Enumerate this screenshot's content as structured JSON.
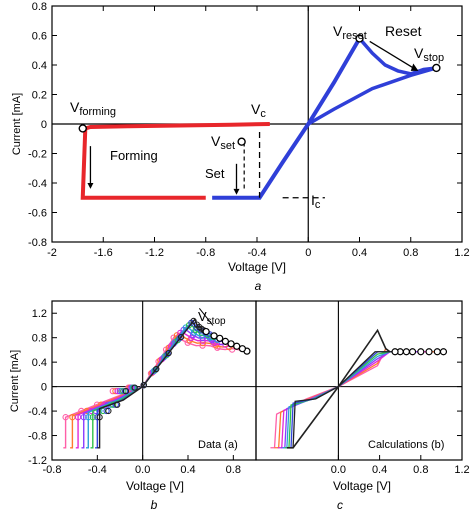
{
  "panels": {
    "a": {
      "caption": "a",
      "ylabel": "Current [mA]",
      "xlabel": "Voltage [V]",
      "xticks": [
        "-2",
        "-1.6",
        "-1.2",
        "-0.8",
        "-0.4",
        "0",
        "0.4",
        "0.8",
        "1.2"
      ],
      "yticks": [
        "0.8",
        "0.6",
        "0.4",
        "0.2",
        "0",
        "-0.2",
        "-0.4",
        "-0.6",
        "-0.8"
      ],
      "annotations": {
        "v_forming_main": "V",
        "v_forming_sub": "forming",
        "forming": "Forming",
        "v_c_main": "V",
        "v_c_sub": "c",
        "v_set_main": "V",
        "v_set_sub": "set",
        "set": "Set",
        "i_c_main": "I",
        "i_c_sub": "c",
        "v_reset_main": "V",
        "v_reset_sub": "reset",
        "reset": "Reset",
        "v_stop_main": "V",
        "v_stop_sub": "stop"
      }
    },
    "b": {
      "caption": "b",
      "ylabel": "Current [mA]",
      "xlabel": "Voltage [V]",
      "xticks": [
        "-0.8",
        "-0.4",
        "0.0",
        "0.4",
        "0.8"
      ],
      "yticks": [
        "1.2",
        "0.8",
        "0.4",
        "0",
        "-0.4",
        "-0.8",
        "-1.2"
      ],
      "legend": "Data (a)",
      "v_stop_main": "V",
      "v_stop_sub": "stop"
    },
    "c": {
      "caption": "c",
      "xlabel": "Voltage [V]",
      "xticks": [
        "0.0",
        "0.4",
        "0.8",
        "1.2"
      ],
      "legend": "Calculations (b)"
    }
  },
  "colors": {
    "forming": "#e8262b",
    "set_reset": "#2f3fd8",
    "family": [
      "#ff5fa8",
      "#ff7a2e",
      "#e02ad6",
      "#8a3cff",
      "#2aa0d8",
      "#31c24a",
      "#3344dd",
      "#222222"
    ]
  },
  "chart_data": [
    {
      "type": "line",
      "panel": "a",
      "xlim": [
        -2,
        1.2
      ],
      "ylim": [
        -0.8,
        0.8
      ],
      "series": [
        {
          "role": "forming",
          "x": [
            -0.3,
            -0.6,
            -1.0,
            -1.4,
            -1.7,
            -1.74,
            -1.76,
            -1.76,
            -1.2,
            -0.8
          ],
          "y": [
            0,
            -0.005,
            -0.01,
            -0.015,
            -0.02,
            -0.03,
            -0.5,
            -0.5,
            -0.5,
            -0.5
          ]
        },
        {
          "role": "set",
          "x": [
            -0.75,
            -0.5,
            -0.38,
            -0.2,
            0,
            0.2,
            0.4
          ],
          "y": [
            -0.5,
            -0.5,
            -0.5,
            -0.26,
            0,
            0.28,
            0.58
          ]
        },
        {
          "role": "reset",
          "x": [
            0.4,
            0.5,
            0.6,
            0.7,
            0.8,
            0.9,
            1.0,
            0.8,
            0.5,
            0.2,
            0
          ],
          "y": [
            0.58,
            0.48,
            0.4,
            0.36,
            0.34,
            0.37,
            0.38,
            0.33,
            0.24,
            0.1,
            0
          ]
        }
      ],
      "markers": {
        "v_forming": [
          -1.76,
          -0.03
        ],
        "v_set": [
          -0.52,
          -0.12
        ],
        "v_reset": [
          0.4,
          0.58
        ],
        "v_stop": [
          1.0,
          0.38
        ],
        "v_c": -0.38,
        "i_c": -0.5
      }
    },
    {
      "type": "line",
      "panel": "b",
      "xlim": [
        -0.8,
        1.0
      ],
      "ylim": [
        -1.2,
        1.4
      ],
      "series": [
        {
          "vset": -0.68,
          "vreset": 0.28,
          "ireset": 0.82,
          "vstop": 0.92,
          "istop": 0.58
        },
        {
          "vset": -0.62,
          "vreset": 0.31,
          "ireset": 0.86,
          "vstop": 0.88,
          "istop": 0.62
        },
        {
          "vset": -0.57,
          "vreset": 0.34,
          "ireset": 0.9,
          "vstop": 0.83,
          "istop": 0.66
        },
        {
          "vset": -0.52,
          "vreset": 0.37,
          "ireset": 0.95,
          "vstop": 0.78,
          "istop": 0.7
        },
        {
          "vset": -0.48,
          "vreset": 0.39,
          "ireset": 0.99,
          "vstop": 0.73,
          "istop": 0.74
        },
        {
          "vset": -0.44,
          "vreset": 0.42,
          "ireset": 1.03,
          "vstop": 0.68,
          "istop": 0.79
        },
        {
          "vset": -0.4,
          "vreset": 0.44,
          "ireset": 1.07,
          "vstop": 0.63,
          "istop": 0.83
        },
        {
          "vset": -0.38,
          "vreset": 0.46,
          "ireset": 1.1,
          "vstop": 0.56,
          "istop": 0.9
        }
      ]
    },
    {
      "type": "line",
      "panel": "c",
      "xlim": [
        0,
        1.2
      ],
      "ylim": [
        -1.2,
        1.4
      ],
      "series": [
        {
          "vset": -0.62,
          "vstop": 1.02
        },
        {
          "vset": -0.58,
          "vstop": 0.96
        },
        {
          "vset": -0.55,
          "vstop": 0.88
        },
        {
          "vset": -0.52,
          "vstop": 0.8
        },
        {
          "vset": -0.5,
          "vstop": 0.72
        },
        {
          "vset": -0.48,
          "vstop": 0.66
        },
        {
          "vset": -0.46,
          "vstop": 0.6
        },
        {
          "vset": -0.44,
          "vstop": 0.55
        }
      ],
      "peak": [
        0.38,
        0.92
      ],
      "plateau": 0.57
    }
  ]
}
